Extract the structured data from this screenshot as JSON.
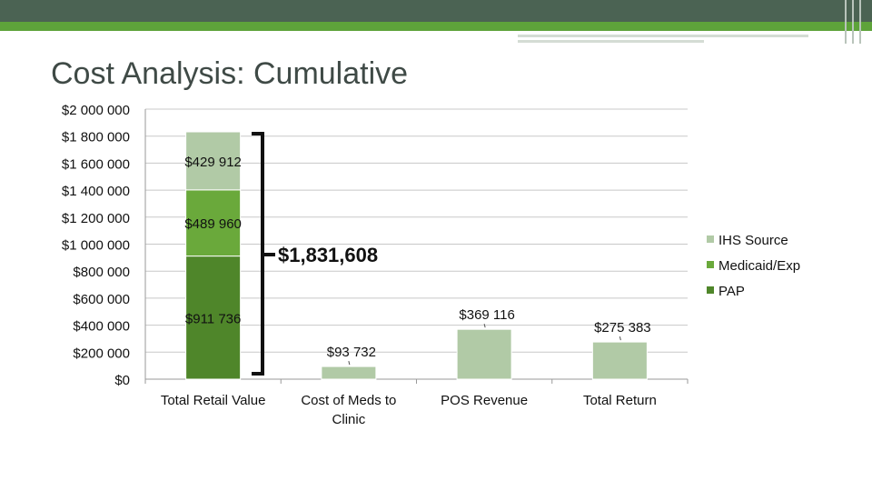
{
  "title": "Cost Analysis: Cumulative",
  "chart_data": {
    "type": "bar",
    "stacked": true,
    "categories": [
      "Total Retail Value",
      "Cost of Meds to Clinic",
      "POS Revenue",
      "Total Return"
    ],
    "series": [
      {
        "name": "PAP",
        "color": "#4f862a",
        "values": [
          911736,
          0,
          0,
          0
        ]
      },
      {
        "name": "Medicaid/Exp",
        "color": "#6aa93b",
        "values": [
          489960,
          0,
          0,
          0
        ]
      },
      {
        "name": "IHS Source",
        "color": "#b1caa6",
        "values": [
          429912,
          93732,
          369116,
          275383
        ]
      }
    ],
    "data_labels": {
      "PAP": [
        "$911 736",
        "",
        "",
        ""
      ],
      "Medicaid/Exp": [
        "$489 960",
        "",
        "",
        ""
      ],
      "IHS Source": [
        "$429 912",
        "$93 732",
        "$369 116",
        "$275 383"
      ]
    },
    "total_annotation": "$1,831,608",
    "y_ticks": [
      0,
      200000,
      400000,
      600000,
      800000,
      1000000,
      1200000,
      1400000,
      1600000,
      1800000,
      2000000
    ],
    "y_tick_labels": [
      "$0",
      "$200 000",
      "$400 000",
      "$600 000",
      "$800 000",
      "$1 000 000",
      "$1 200 000",
      "$1 400 000",
      "$1 600 000",
      "$1 800 000",
      "$2 000 000"
    ],
    "ylim": [
      0,
      2000000
    ],
    "grid": true,
    "legend_position": "right",
    "legend": [
      "IHS Source",
      "Medicaid/Exp",
      "PAP"
    ]
  }
}
